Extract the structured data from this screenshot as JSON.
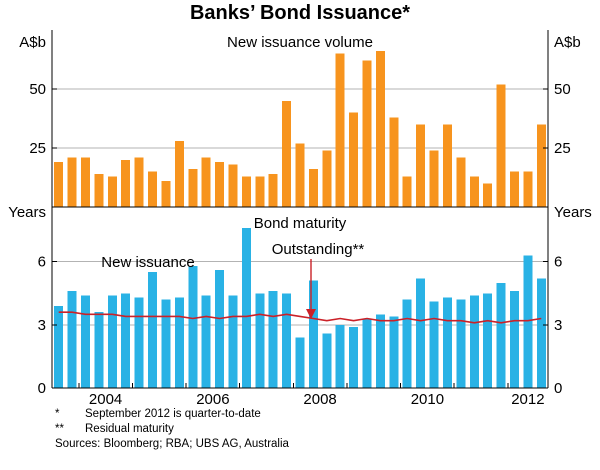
{
  "title": "Banks’ Bond Issuance*",
  "footnotes": [
    {
      "marker": "*",
      "text": "September 2012 is quarter-to-date"
    },
    {
      "marker": "**",
      "text": "Residual maturity"
    },
    {
      "marker": "",
      "text": "Sources: Bloomberg; RBA; UBS AG, Australia"
    }
  ],
  "colors": {
    "orange": "#F7941E",
    "blue": "#29B2E5",
    "red": "#CB2128",
    "grid": "#B3B3B3",
    "axis": "#000000"
  },
  "xaxis": {
    "year_labels": [
      "2004",
      "2006",
      "2008",
      "2010",
      "2012"
    ]
  },
  "chart_data": [
    {
      "type": "bar",
      "panel": "top",
      "title": "New issuance volume",
      "ylabel": "A$b",
      "ylim": [
        0,
        75
      ],
      "yticks": [
        25,
        50
      ],
      "grid": true,
      "categories": [
        "2003Q3",
        "2003Q4",
        "2004Q1",
        "2004Q2",
        "2004Q3",
        "2004Q4",
        "2005Q1",
        "2005Q2",
        "2005Q3",
        "2005Q4",
        "2006Q1",
        "2006Q2",
        "2006Q3",
        "2006Q4",
        "2007Q1",
        "2007Q2",
        "2007Q3",
        "2007Q4",
        "2008Q1",
        "2008Q2",
        "2008Q3",
        "2008Q4",
        "2009Q1",
        "2009Q2",
        "2009Q3",
        "2009Q4",
        "2010Q1",
        "2010Q2",
        "2010Q3",
        "2010Q4",
        "2011Q1",
        "2011Q2",
        "2011Q3",
        "2011Q4",
        "2012Q1",
        "2012Q2",
        "2012Q3"
      ],
      "series": [
        {
          "name": "New issuance volume",
          "type": "bar",
          "color": "#F7941E",
          "values": [
            19,
            21,
            21,
            14,
            13,
            20,
            21,
            15,
            11,
            28,
            16,
            21,
            19,
            18,
            13,
            13,
            14,
            45,
            27,
            16,
            24,
            65,
            40,
            62,
            66,
            38,
            13,
            35,
            24,
            35,
            21,
            13,
            10,
            52,
            15,
            15,
            35
          ]
        }
      ]
    },
    {
      "type": "bar+line",
      "panel": "bottom",
      "title": "Bond maturity",
      "ylabel": "Years",
      "ylim": [
        0,
        8.6
      ],
      "yticks": [
        0,
        3,
        6
      ],
      "grid": true,
      "categories": [
        "2003Q3",
        "2003Q4",
        "2004Q1",
        "2004Q2",
        "2004Q3",
        "2004Q4",
        "2005Q1",
        "2005Q2",
        "2005Q3",
        "2005Q4",
        "2006Q1",
        "2006Q2",
        "2006Q3",
        "2006Q4",
        "2007Q1",
        "2007Q2",
        "2007Q3",
        "2007Q4",
        "2008Q1",
        "2008Q2",
        "2008Q3",
        "2008Q4",
        "2009Q1",
        "2009Q2",
        "2009Q3",
        "2009Q4",
        "2010Q1",
        "2010Q2",
        "2010Q3",
        "2010Q4",
        "2011Q1",
        "2011Q2",
        "2011Q3",
        "2011Q4",
        "2012Q1",
        "2012Q2",
        "2012Q3"
      ],
      "series": [
        {
          "name": "New issuance",
          "type": "bar",
          "color": "#29B2E5",
          "values": [
            3.9,
            4.6,
            4.4,
            3.6,
            4.4,
            4.5,
            4.3,
            5.5,
            4.2,
            4.3,
            5.8,
            4.4,
            5.6,
            4.4,
            7.6,
            4.5,
            4.6,
            4.5,
            2.4,
            5.1,
            2.6,
            3.0,
            2.9,
            3.3,
            3.5,
            3.4,
            4.2,
            5.2,
            4.1,
            4.3,
            4.2,
            4.4,
            4.5,
            5.0,
            4.6,
            6.3,
            5.2
          ]
        },
        {
          "name": "Outstanding**",
          "type": "line",
          "color": "#CB2128",
          "values": [
            3.6,
            3.6,
            3.5,
            3.5,
            3.5,
            3.4,
            3.4,
            3.4,
            3.4,
            3.4,
            3.3,
            3.4,
            3.3,
            3.4,
            3.4,
            3.5,
            3.4,
            3.5,
            3.4,
            3.3,
            3.2,
            3.3,
            3.2,
            3.3,
            3.2,
            3.2,
            3.3,
            3.2,
            3.3,
            3.2,
            3.2,
            3.1,
            3.2,
            3.1,
            3.2,
            3.2,
            3.3
          ]
        }
      ],
      "annotations": [
        {
          "text": "New issuance",
          "color": "#29B2E5"
        },
        {
          "text": "Outstanding**",
          "color": "#CB2128",
          "arrow": true
        }
      ]
    }
  ]
}
